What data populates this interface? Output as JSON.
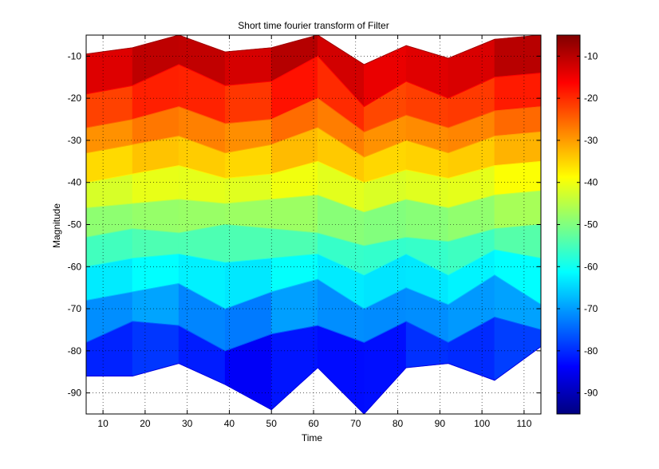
{
  "chart_data": {
    "type": "area",
    "title": "Short time fourier transform of Filter",
    "xlabel": "Time",
    "ylabel": "Magnitude",
    "xlim": [
      6,
      114
    ],
    "ylim": [
      -95,
      -5
    ],
    "xticks": [
      10,
      20,
      30,
      40,
      50,
      60,
      70,
      80,
      90,
      100,
      110
    ],
    "yticks": [
      -10,
      -20,
      -30,
      -40,
      -50,
      -60,
      -70,
      -80,
      -90
    ],
    "grid": true,
    "colormap": "jet",
    "colorbar": {
      "min": -95,
      "max": -5,
      "ticks": [
        -10,
        -20,
        -30,
        -40,
        -50,
        -60,
        -70,
        -80,
        -90
      ]
    },
    "x": [
      6,
      17,
      28,
      39,
      50,
      61,
      72,
      82,
      92,
      103,
      114
    ],
    "series": [
      {
        "values": [
          -9.5,
          -8,
          -5,
          -9,
          -8,
          -5,
          -12,
          -7.5,
          -10.5,
          -6,
          -5
        ]
      },
      {
        "values": [
          -19,
          -17,
          -12,
          -17,
          -16,
          -10,
          -22,
          -16,
          -20,
          -15,
          -14
        ]
      },
      {
        "values": [
          -27,
          -25,
          -22,
          -26,
          -25,
          -20,
          -28,
          -24,
          -27,
          -23,
          -22
        ]
      },
      {
        "values": [
          -33,
          -31,
          -29,
          -33,
          -31,
          -27,
          -34,
          -30,
          -33,
          -29,
          -28
        ]
      },
      {
        "values": [
          -40,
          -38,
          -36,
          -39,
          -38,
          -35,
          -40,
          -37,
          -39,
          -36,
          -35
        ]
      },
      {
        "values": [
          -46,
          -45,
          -44,
          -45,
          -44,
          -43,
          -47,
          -44,
          -46,
          -43,
          -42
        ]
      },
      {
        "values": [
          -53,
          -51,
          -52,
          -50,
          -51,
          -52,
          -55,
          -53,
          -54,
          -51,
          -50
        ]
      },
      {
        "values": [
          -60,
          -58,
          -57,
          -59,
          -58,
          -57,
          -62,
          -57,
          -62,
          -56,
          -58
        ]
      },
      {
        "values": [
          -68,
          -66,
          -64,
          -70,
          -66,
          -63,
          -70,
          -65,
          -69,
          -62,
          -69
        ]
      },
      {
        "values": [
          -78,
          -73,
          -74,
          -80,
          -76,
          -74,
          -78,
          -73,
          -78,
          -72,
          -75
        ]
      },
      {
        "values": [
          -86,
          -86,
          -83,
          -88,
          -94,
          -84,
          -95,
          -84,
          -83,
          -87,
          -79
        ]
      }
    ]
  }
}
